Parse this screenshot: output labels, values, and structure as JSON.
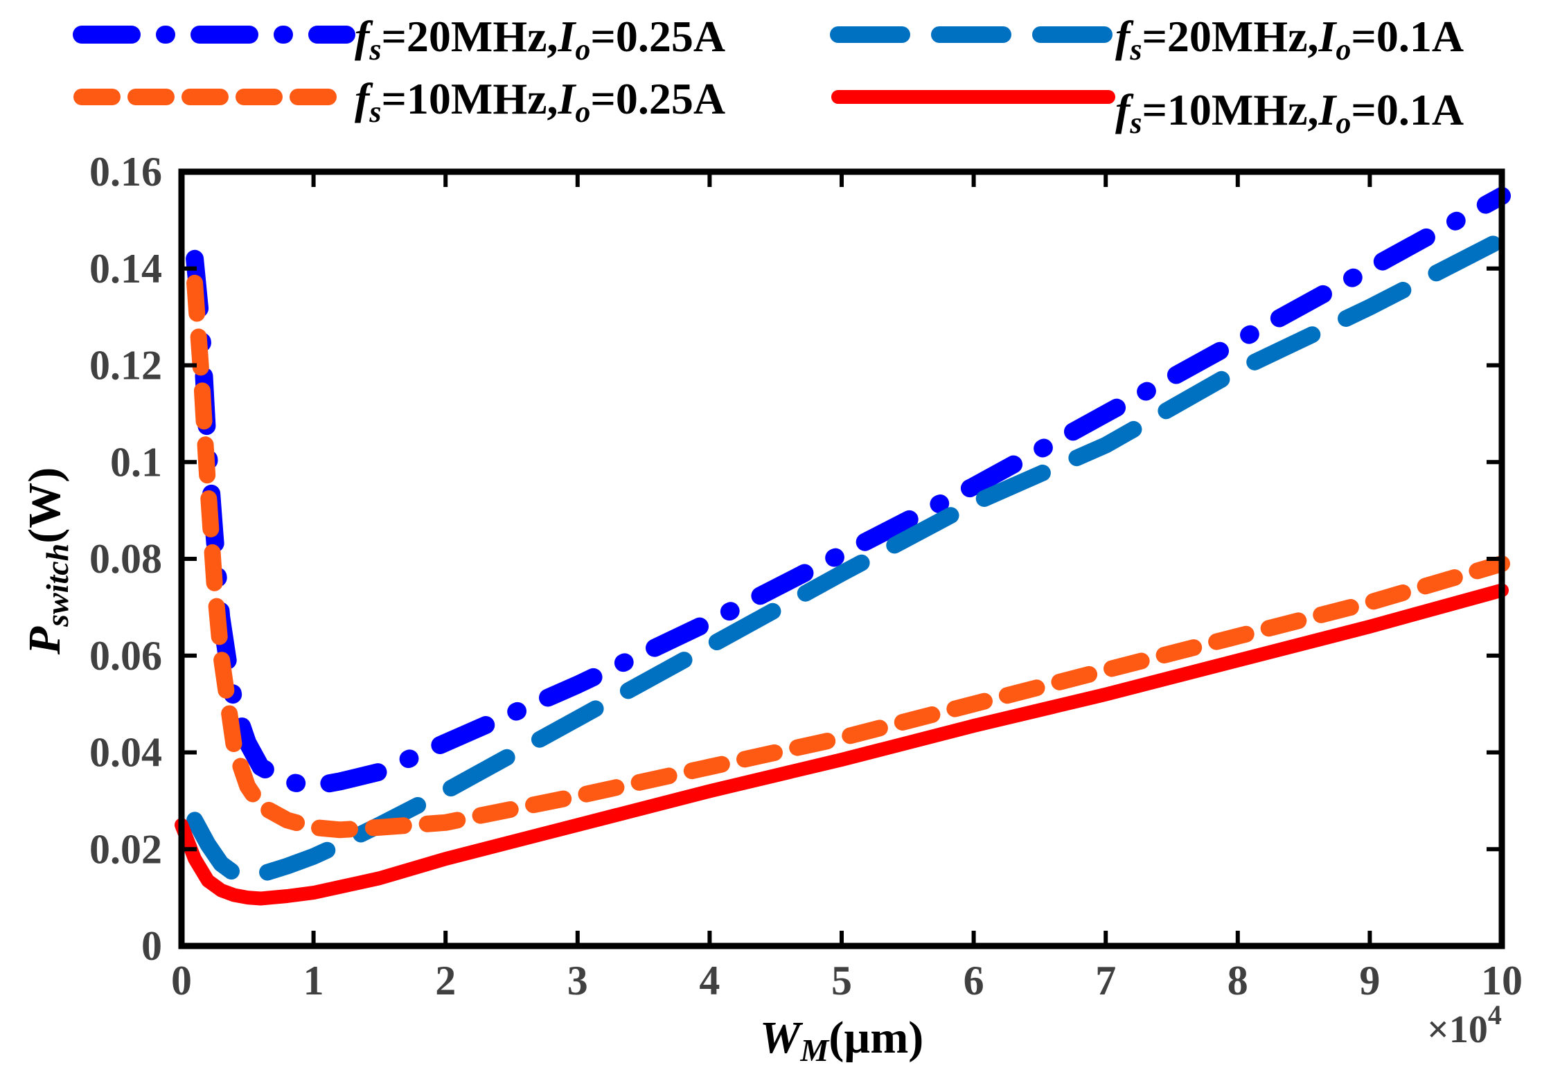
{
  "chart_data": {
    "type": "line",
    "title": "",
    "xlabel": {
      "base": "W",
      "sub": "M",
      "unit": "(µm)"
    },
    "ylabel": {
      "base": "P",
      "sub": "switch",
      "unit": "(W)"
    },
    "x_multiplier": {
      "text": "×10",
      "exp": "4"
    },
    "xlim": [
      0,
      10
    ],
    "ylim": [
      0,
      0.16
    ],
    "xticks": [
      0,
      1,
      2,
      3,
      4,
      5,
      6,
      7,
      8,
      9,
      10
    ],
    "xtick_labels": [
      "0",
      "1",
      "2",
      "3",
      "4",
      "5",
      "6",
      "7",
      "8",
      "9",
      "10"
    ],
    "yticks": [
      0,
      0.02,
      0.04,
      0.06,
      0.08,
      0.1,
      0.12,
      0.14,
      0.16
    ],
    "ytick_labels": [
      "0",
      "0.02",
      "0.04",
      "0.06",
      "0.08",
      "0.1",
      "0.12",
      "0.14",
      "0.16"
    ],
    "grid": false,
    "legend_position": "top",
    "series": [
      {
        "name": "fs=20MHz,Io=0.25A",
        "label": {
          "f": "f",
          "fsub": "s",
          "mid": "=20MHz,",
          "i": "I",
          "isub": "o",
          "end": "=0.25A"
        },
        "color": "#0000ff",
        "style": "dashdot",
        "x": [
          0.1,
          0.15,
          0.2,
          0.25,
          0.3,
          0.4,
          0.5,
          0.6,
          0.8,
          1.0,
          1.2,
          1.5,
          2,
          3,
          4,
          5,
          6,
          7,
          8,
          9,
          10
        ],
        "y": [
          0.142,
          0.128,
          0.103,
          0.085,
          0.068,
          0.05,
          0.042,
          0.037,
          0.034,
          0.033,
          0.034,
          0.036,
          0.042,
          0.054,
          0.067,
          0.081,
          0.095,
          0.11,
          0.125,
          0.14,
          0.155
        ]
      },
      {
        "name": "fs=20MHz,Io=0.1A",
        "label": {
          "f": "f",
          "fsub": "s",
          "mid": "=20MHz,",
          "i": "I",
          "isub": "o",
          "end": "=0.1A"
        },
        "color": "#0070c0",
        "style": "dash",
        "x": [
          0.1,
          0.2,
          0.3,
          0.4,
          0.5,
          0.6,
          0.8,
          1.0,
          1.2,
          1.5,
          2,
          3,
          4,
          5,
          6,
          7,
          8,
          9,
          10
        ],
        "y": [
          0.026,
          0.021,
          0.017,
          0.015,
          0.0145,
          0.0148,
          0.0165,
          0.0185,
          0.021,
          0.025,
          0.032,
          0.047,
          0.062,
          0.077,
          0.0915,
          0.1035,
          0.119,
          0.132,
          0.146
        ]
      },
      {
        "name": "fs=10MHz,Io=0.25A",
        "label": {
          "f": "f",
          "fsub": "s",
          "mid": "=10MHz,",
          "i": "I",
          "isub": "o",
          "end": "=0.25A"
        },
        "color": "#ff5a14",
        "style": "dashed-short",
        "x": [
          0.1,
          0.15,
          0.2,
          0.25,
          0.3,
          0.4,
          0.5,
          0.6,
          0.8,
          1.0,
          1.2,
          1.5,
          2,
          3,
          4,
          5,
          6,
          7,
          8,
          9,
          10
        ],
        "y": [
          0.137,
          0.118,
          0.095,
          0.075,
          0.06,
          0.041,
          0.033,
          0.029,
          0.026,
          0.0245,
          0.024,
          0.0245,
          0.0255,
          0.031,
          0.037,
          0.043,
          0.05,
          0.057,
          0.064,
          0.071,
          0.079
        ]
      },
      {
        "name": "fs=10MHz,Io=0.1A",
        "label": {
          "f": "f",
          "fsub": "s",
          "mid": "=10MHz,",
          "i": "I",
          "isub": "o",
          "end": "=0.1A"
        },
        "color": "#ff0000",
        "style": "solid",
        "x": [
          0.0,
          0.1,
          0.2,
          0.3,
          0.4,
          0.5,
          0.6,
          0.8,
          1.0,
          1.5,
          2,
          3,
          4,
          5,
          6,
          7,
          8,
          9,
          10
        ],
        "y": [
          0.025,
          0.018,
          0.0135,
          0.0115,
          0.0105,
          0.01,
          0.0098,
          0.0103,
          0.011,
          0.014,
          0.018,
          0.025,
          0.032,
          0.0385,
          0.0455,
          0.052,
          0.059,
          0.066,
          0.0735
        ]
      }
    ]
  }
}
